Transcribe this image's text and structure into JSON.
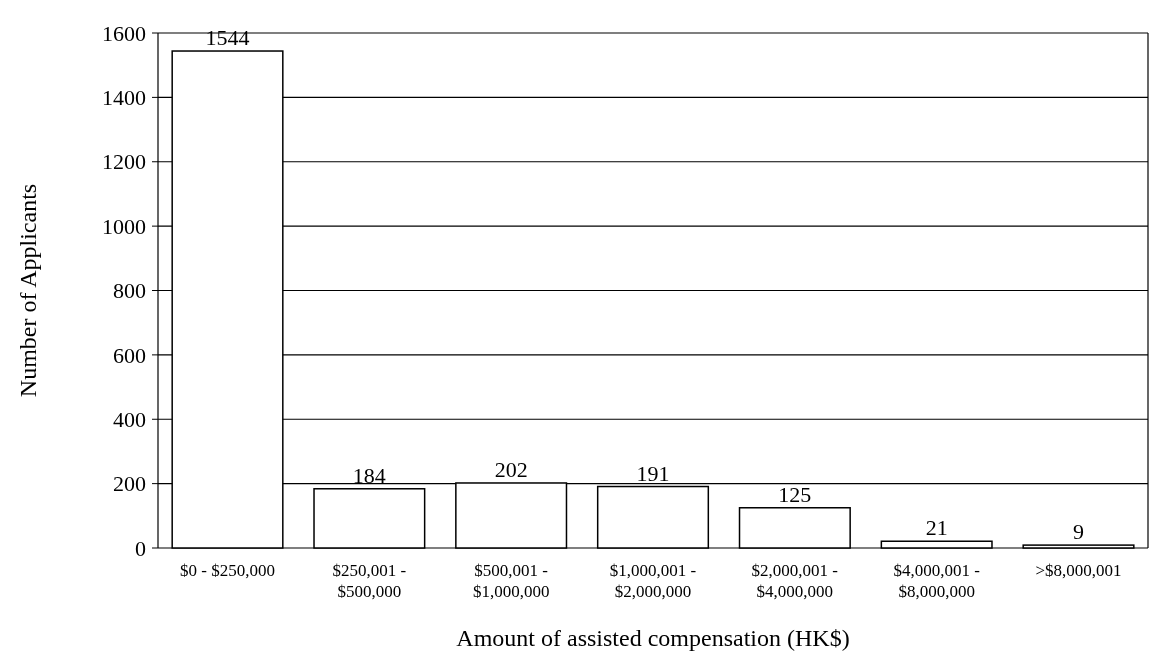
{
  "chart_data": {
    "type": "bar",
    "xlabel": "Amount of assisted compensation (HK$)",
    "ylabel": "Number of Applicants",
    "categories": [
      "$0 - $250,000",
      "$250,001 - $500,000",
      "$500,001 - $1,000,000",
      "$1,000,001 - $2,000,000",
      "$2,000,001 - $4,000,000",
      "$4,000,001 - $8,000,000",
      ">$8,000,001"
    ],
    "values": [
      1544,
      184,
      202,
      191,
      125,
      21,
      9
    ],
    "color": "#ffffff",
    "ylim": [
      0,
      1600
    ],
    "yticks": [
      0,
      200,
      400,
      600,
      800,
      1000,
      1200,
      1400,
      1600
    ],
    "grid": "y",
    "data_labels": true
  }
}
